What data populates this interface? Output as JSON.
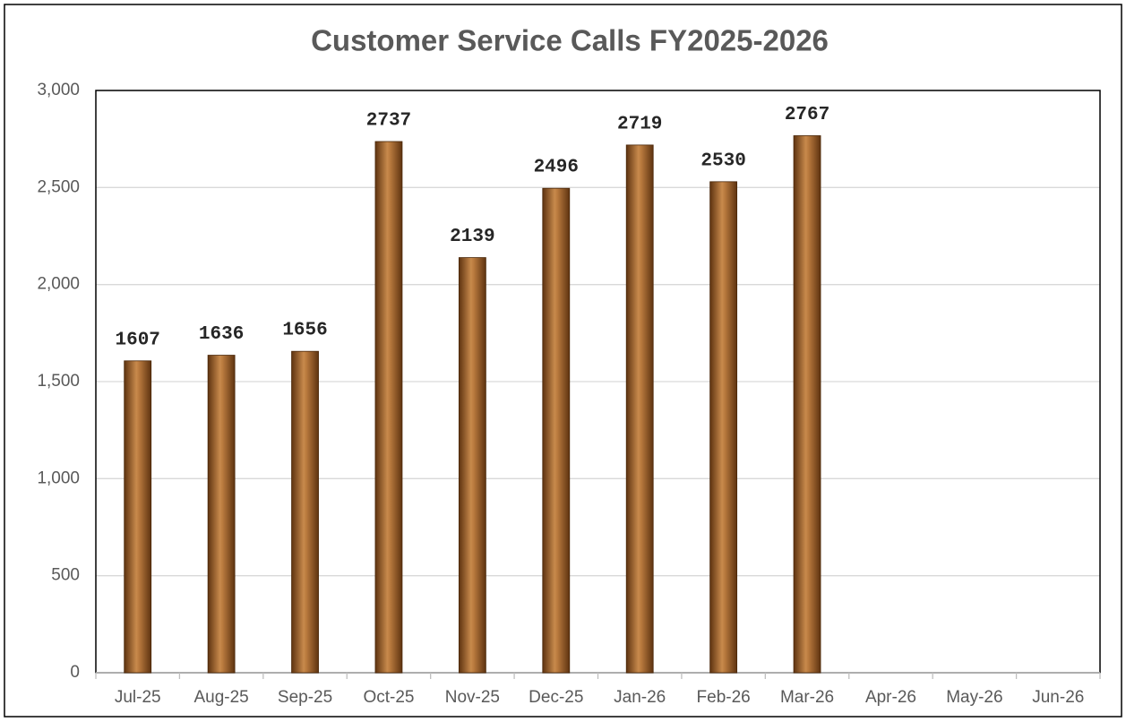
{
  "chart_data": {
    "type": "bar",
    "title": "Customer Service Calls FY2025-2026",
    "categories": [
      "Jul-25",
      "Aug-25",
      "Sep-25",
      "Oct-25",
      "Nov-25",
      "Dec-25",
      "Jan-26",
      "Feb-26",
      "Mar-26",
      "Apr-26",
      "May-26",
      "Jun-26"
    ],
    "values": [
      1607,
      1636,
      1656,
      2737,
      2139,
      2496,
      2719,
      2530,
      2767,
      null,
      null,
      null
    ],
    "color": "#a0622a",
    "ylim": [
      0,
      3000
    ],
    "yticks": [
      0,
      500,
      {
        "value": 1000,
        "label": "1,000"
      },
      {
        "value": 1500,
        "label": "1,500"
      },
      {
        "value": 2000,
        "label": "2,000"
      },
      {
        "value": 2500,
        "label": "2,500"
      },
      {
        "value": 3000,
        "label": "3,000"
      }
    ],
    "grid": true
  }
}
